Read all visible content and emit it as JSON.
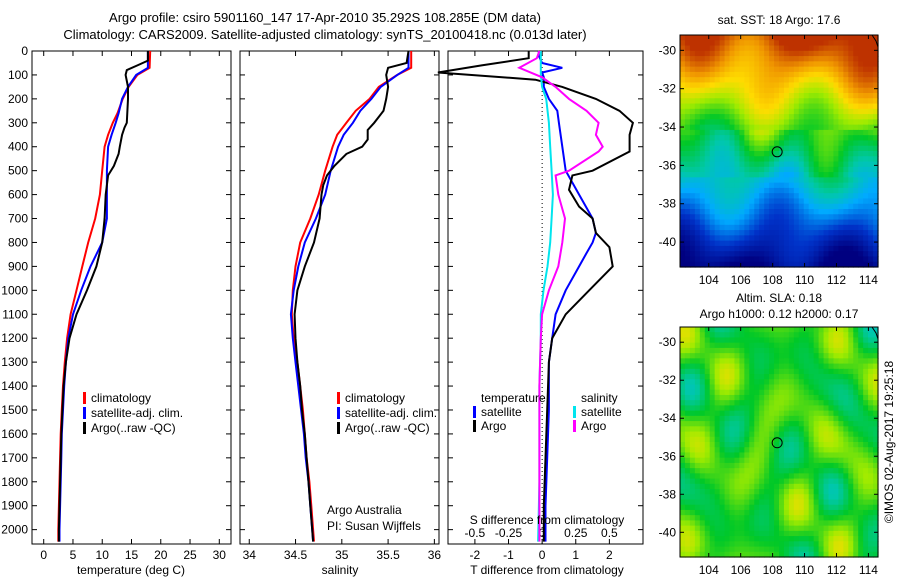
{
  "header": {
    "title_line1": "Argo profile: csiro 5901160_147 17-Apr-2010 35.292S 108.285E (DM data)",
    "title_line2": "Climatology: CARS2009. Satellite-adjusted climatology: synTS_20100418.nc (0.013d later)"
  },
  "colors": {
    "climatology": "#ff0000",
    "satellite": "#0000ff",
    "argo": "#000000",
    "sal_satellite": "#00e5ee",
    "sal_argo": "#ff00ff"
  },
  "chart_data": [
    {
      "type": "line",
      "name": "temperature-profile",
      "xlabel": "temperature (deg C)",
      "ylabel": "",
      "xlim": [
        -2,
        32
      ],
      "ylim": [
        2060,
        0
      ],
      "xticks": [
        0,
        5,
        10,
        15,
        20,
        25,
        30
      ],
      "yticks": [
        0,
        100,
        200,
        300,
        400,
        500,
        600,
        700,
        800,
        900,
        1000,
        1100,
        1200,
        1300,
        1400,
        1500,
        1600,
        1700,
        1800,
        1900,
        2000
      ],
      "legend": [
        "climatology",
        "satellite-adj. clim.",
        "Argo(..raw -QC)"
      ],
      "legend_position": "center",
      "series": [
        {
          "name": "climatology",
          "color": "climatology",
          "depth": [
            0,
            70,
            100,
            150,
            200,
            260,
            300,
            350,
            400,
            500,
            600,
            700,
            800,
            900,
            1000,
            1100,
            1200,
            1300,
            1400,
            1500,
            1600,
            1700,
            1800,
            1900,
            2000,
            2050
          ],
          "values": [
            18.2,
            18.1,
            16,
            14.5,
            13.5,
            12.6,
            11.8,
            11,
            10.4,
            10,
            9.6,
            8.8,
            7.6,
            6.6,
            5.6,
            4.6,
            4,
            3.6,
            3.3,
            3.1,
            2.9,
            2.8,
            2.7,
            2.6,
            2.5,
            2.5
          ]
        },
        {
          "name": "satellite-adj. clim.",
          "color": "satellite",
          "depth": [
            0,
            70,
            100,
            150,
            200,
            260,
            300,
            350,
            400,
            500,
            600,
            700,
            800,
            900,
            1000,
            1100,
            1200,
            1300,
            1400,
            1500,
            1600,
            1700,
            1800,
            1900,
            2000,
            2050
          ],
          "values": [
            17.8,
            17.8,
            15.8,
            14.4,
            13.4,
            12.8,
            12.3,
            11.6,
            11,
            10.8,
            10.8,
            10.8,
            10,
            8,
            6.4,
            5,
            4.2,
            3.8,
            3.5,
            3.3,
            3.1,
            3,
            2.9,
            2.8,
            2.7,
            2.7
          ]
        },
        {
          "name": "Argo(..raw -QC)",
          "color": "argo",
          "depth": [
            0,
            40,
            60,
            80,
            100,
            150,
            200,
            300,
            320,
            350,
            400,
            430,
            480,
            520,
            560,
            600,
            700,
            800,
            900,
            1000,
            1100,
            1200,
            1300,
            1400,
            1500,
            1600,
            1700,
            1800,
            1900,
            2000,
            2050
          ],
          "values": [
            17.8,
            17.8,
            16,
            14.2,
            14,
            14.4,
            14.4,
            14.2,
            13.8,
            13.4,
            13,
            12.8,
            12,
            11,
            10.8,
            10.6,
            10.4,
            10,
            9,
            7.4,
            5.6,
            4.4,
            3.8,
            3.4,
            3.2,
            3,
            2.9,
            2.8,
            2.7,
            2.6,
            2.6
          ]
        }
      ]
    },
    {
      "type": "line",
      "name": "salinity-profile",
      "xlabel": "salinity",
      "xlim": [
        33.9,
        36.05
      ],
      "ylim": [
        2060,
        0
      ],
      "xticks": [
        34,
        34.5,
        35,
        35.5,
        36
      ],
      "legend": [
        "climatology",
        "satellite-adj. clim.",
        "Argo(..raw -QC)"
      ],
      "legend_position": "center-right",
      "annotation": [
        "Argo Australia",
        "PI: Susan Wijffels"
      ],
      "series": [
        {
          "name": "climatology",
          "color": "climatology",
          "depth": [
            0,
            70,
            100,
            150,
            200,
            250,
            300,
            350,
            400,
            500,
            600,
            700,
            800,
            900,
            1000,
            1100,
            1200,
            1300,
            1400,
            1500,
            1600,
            1700,
            1800,
            1900,
            2000,
            2050
          ],
          "values": [
            35.75,
            35.75,
            35.6,
            35.4,
            35.3,
            35.15,
            35.05,
            34.95,
            34.9,
            34.82,
            34.75,
            34.66,
            34.55,
            34.5,
            34.47,
            34.46,
            34.48,
            34.52,
            34.55,
            34.58,
            34.6,
            34.62,
            34.65,
            34.67,
            34.69,
            34.7
          ]
        },
        {
          "name": "satellite-adj. clim.",
          "color": "satellite",
          "depth": [
            0,
            70,
            100,
            150,
            200,
            250,
            300,
            350,
            400,
            500,
            600,
            700,
            800,
            900,
            1000,
            1100,
            1200,
            1300,
            1400,
            1500,
            1600,
            1700,
            1800,
            1900,
            2000,
            2050
          ],
          "values": [
            35.72,
            35.72,
            35.6,
            35.42,
            35.32,
            35.2,
            35.12,
            35.02,
            34.96,
            34.88,
            34.82,
            34.72,
            34.6,
            34.53,
            34.48,
            34.45,
            34.47,
            34.5,
            34.53,
            34.56,
            34.59,
            34.61,
            34.64,
            34.66,
            34.68,
            34.69
          ]
        },
        {
          "name": "Argo(..raw -QC)",
          "color": "argo",
          "depth": [
            0,
            50,
            70,
            100,
            150,
            200,
            250,
            300,
            330,
            370,
            400,
            430,
            480,
            520,
            560,
            600,
            700,
            800,
            900,
            1000,
            1100,
            1200,
            1300,
            1400,
            1500,
            1600,
            1700,
            1800,
            1900,
            2000,
            2050
          ],
          "values": [
            35.72,
            35.7,
            35.5,
            35.48,
            35.5,
            35.48,
            35.45,
            35.35,
            35.28,
            35.28,
            35.22,
            35.05,
            34.92,
            34.84,
            34.8,
            34.78,
            34.76,
            34.7,
            34.6,
            34.52,
            34.49,
            34.5,
            34.52,
            34.55,
            34.57,
            34.6,
            34.62,
            34.64,
            34.66,
            34.68,
            34.69
          ]
        }
      ]
    },
    {
      "type": "line",
      "name": "difference-profile",
      "xlabel": "T difference from climatology",
      "x2label": "S difference from climatology",
      "xlim": [
        -2.8,
        3.0
      ],
      "x2lim": [
        -0.7,
        0.75
      ],
      "ylim": [
        2060,
        0
      ],
      "xticks": [
        -2,
        -1,
        0,
        1,
        2
      ],
      "x2ticks": [
        -0.5,
        -0.25,
        0,
        0.25,
        0.5
      ],
      "x2ticklabels": [
        "-0.5",
        "-0.25",
        "0",
        "0.25",
        "0.5"
      ],
      "legend_temperature": {
        "title": "temperature",
        "items": [
          "satellite",
          "Argo"
        ]
      },
      "legend_salinity": {
        "title": "salinity",
        "items": [
          "satellite",
          "Argo"
        ]
      },
      "series": [
        {
          "name": "T satellite",
          "color": "satellite",
          "depth": [
            0,
            20,
            50,
            70,
            90,
            110,
            150,
            200,
            250,
            300,
            400,
            500,
            600,
            700,
            760,
            800,
            850,
            900,
            1000,
            1100,
            1200,
            1300,
            1500,
            1700,
            1900,
            2050
          ],
          "values": [
            -0.1,
            -0.1,
            0,
            0.6,
            0,
            0.05,
            0.05,
            0.2,
            0.45,
            0.5,
            0.6,
            0.7,
            1.1,
            1.5,
            1.6,
            1.5,
            1.3,
            1.1,
            0.7,
            0.4,
            0.3,
            0.2,
            0.2,
            0.15,
            0.1,
            0.1
          ]
        },
        {
          "name": "T Argo",
          "color": "argo",
          "depth": [
            0,
            30,
            60,
            90,
            120,
            150,
            200,
            250,
            300,
            350,
            420,
            500,
            520,
            580,
            650,
            700,
            760,
            820,
            900,
            1000,
            1100,
            1200,
            1300,
            1500,
            1700,
            1900,
            2050
          ],
          "values": [
            -0.4,
            -0.4,
            -1.8,
            -3.1,
            -0.2,
            0.6,
            1.6,
            2.3,
            2.7,
            2.6,
            2.6,
            1.5,
            0.9,
            0.8,
            1.1,
            1.5,
            1.6,
            2.0,
            2.1,
            1.4,
            0.7,
            0.3,
            0.2,
            0.15,
            0.1,
            0.05,
            0.05
          ]
        },
        {
          "name": "S satellite",
          "color": "sal_satellite",
          "depth": [
            0,
            50,
            100,
            150,
            200,
            300,
            400,
            500,
            600,
            700,
            800,
            900,
            1000,
            1100,
            1200,
            1400,
            1600,
            1800,
            2050
          ],
          "values": [
            -0.01,
            -0.01,
            -0.01,
            0.0,
            0.03,
            0.05,
            0.06,
            0.07,
            0.08,
            0.07,
            0.06,
            0.04,
            0.01,
            -0.01,
            -0.01,
            -0.02,
            -0.02,
            -0.02,
            -0.03
          ]
        },
        {
          "name": "S Argo",
          "color": "sal_argo",
          "depth": [
            0,
            30,
            70,
            110,
            150,
            200,
            250,
            300,
            350,
            400,
            420,
            500,
            520,
            600,
            700,
            800,
            900,
            1000,
            1100,
            1200,
            1400,
            1600,
            1800,
            2050
          ],
          "values": [
            -0.02,
            -0.04,
            -0.17,
            0.0,
            0.1,
            0.2,
            0.33,
            0.42,
            0.4,
            0.45,
            0.42,
            0.2,
            0.1,
            0.12,
            0.17,
            0.15,
            0.12,
            0.05,
            0.0,
            -0.01,
            -0.02,
            -0.02,
            -0.02,
            -0.02
          ]
        }
      ]
    },
    {
      "type": "heatmap",
      "name": "sst-map",
      "title": "sat. SST: 18 Argo: 17.6",
      "xlim": [
        102.2,
        114.6
      ],
      "ylim": [
        -41.3,
        -29.2
      ],
      "xticks": [
        104,
        106,
        108,
        110,
        112,
        114
      ],
      "yticks": [
        -30,
        -32,
        -34,
        -36,
        -38,
        -40
      ],
      "marker": {
        "lon": 108.285,
        "lat": -35.292
      }
    },
    {
      "type": "heatmap",
      "name": "sla-map",
      "title_line1": "Altim. SLA: 0.18",
      "title_line2": "Argo h1000: 0.12 h2000: 0.17",
      "xlim": [
        102.2,
        114.6
      ],
      "ylim": [
        -41.3,
        -29.2
      ],
      "xticks": [
        104,
        106,
        108,
        110,
        112,
        114
      ],
      "yticks": [
        -30,
        -32,
        -34,
        -36,
        -38,
        -40
      ],
      "marker": {
        "lon": 108.285,
        "lat": -35.292
      }
    }
  ],
  "footer": {
    "credit": "©IMOS 02-Aug-2017 19:25:18"
  }
}
